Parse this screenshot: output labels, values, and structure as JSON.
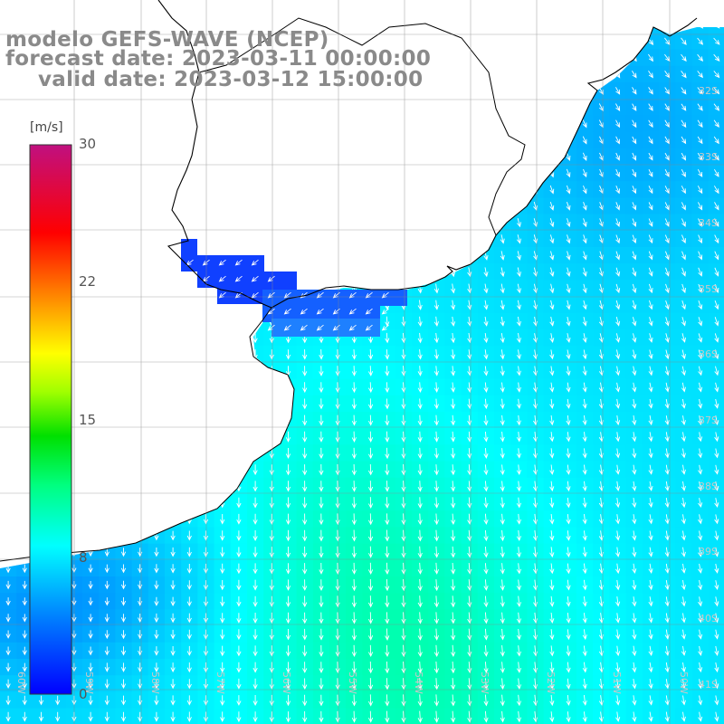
{
  "title": {
    "line1": "modelo GEFS-WAVE (NCEP)",
    "line2": "forecast date: 2023-03-11 00:00:00",
    "line3": "valid date: 2023-03-12 15:00:00"
  },
  "colorbar": {
    "units": "[m/s]",
    "ticks": [
      "30",
      "22",
      "15",
      "8",
      "0"
    ],
    "range": [
      0,
      30
    ],
    "colors": [
      "#0000ff",
      "#0090ff",
      "#00ffff",
      "#00ff00",
      "#ffff00",
      "#ff8000",
      "#ff0000",
      "#c01080"
    ]
  },
  "lat_labels": [
    "32S",
    "33S",
    "34S",
    "35S",
    "36S",
    "37S",
    "38S",
    "39S",
    "40S",
    "41S"
  ],
  "lon_labels": [
    "60W",
    "59W",
    "58W",
    "57W",
    "56W",
    "55W",
    "54W",
    "53W",
    "52W",
    "51W",
    "50W"
  ],
  "map": {
    "field": "10 m wind speed with direction arrows",
    "arrow_color": "#ffffff",
    "land_color": "#ffffff",
    "coastline_color": "#000000",
    "grid_color": "#888888"
  }
}
